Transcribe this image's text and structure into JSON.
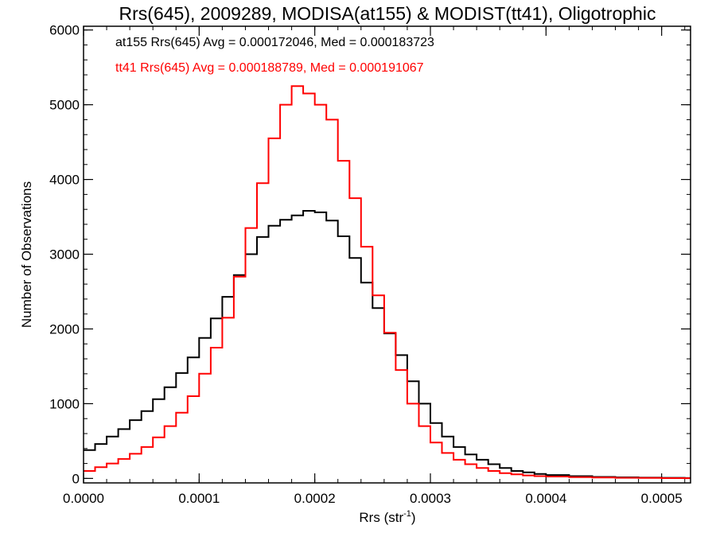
{
  "chart_data": {
    "type": "line",
    "step": true,
    "title": "Rrs(645), 2009289, MODISA(at155) & MODIST(tt41), Oligotrophic",
    "xlabel_base": "Rrs (str",
    "xlabel_sup": "-1",
    "xlabel_close": ")",
    "ylabel": "Number of Observations",
    "xlim": [
      0,
      0.000525
    ],
    "ylim": [
      -60,
      6050
    ],
    "x_ticks": [
      0,
      0.0001,
      0.0002,
      0.0003,
      0.0004,
      0.0005
    ],
    "x_tick_labels": [
      "0.0000",
      "0.0001",
      "0.0002",
      "0.0003",
      "0.0004",
      "0.0005"
    ],
    "y_ticks": [
      0,
      1000,
      2000,
      3000,
      4000,
      5000,
      6000
    ],
    "y_tick_labels": [
      "0",
      "1000",
      "2000",
      "3000",
      "4000",
      "5000",
      "6000"
    ],
    "series": [
      {
        "name": "at155",
        "color": "#000000",
        "stats_text": "at155 Rrs(645) Avg = 0.000172046, Med = 0.000183723",
        "points": [
          [
            0,
            380
          ],
          [
            1e-05,
            460
          ],
          [
            2e-05,
            560
          ],
          [
            3e-05,
            660
          ],
          [
            4e-05,
            780
          ],
          [
            5e-05,
            900
          ],
          [
            6e-05,
            1060
          ],
          [
            7e-05,
            1220
          ],
          [
            8e-05,
            1410
          ],
          [
            9e-05,
            1620
          ],
          [
            0.0001,
            1880
          ],
          [
            0.00011,
            2140
          ],
          [
            0.00012,
            2430
          ],
          [
            0.00013,
            2720
          ],
          [
            0.00014,
            3000
          ],
          [
            0.00015,
            3230
          ],
          [
            0.00016,
            3380
          ],
          [
            0.00017,
            3460
          ],
          [
            0.00018,
            3520
          ],
          [
            0.00019,
            3580
          ],
          [
            0.0002,
            3560
          ],
          [
            0.00021,
            3450
          ],
          [
            0.00022,
            3240
          ],
          [
            0.00023,
            2950
          ],
          [
            0.00024,
            2620
          ],
          [
            0.00025,
            2280
          ],
          [
            0.00026,
            1940
          ],
          [
            0.00027,
            1650
          ],
          [
            0.00028,
            1300
          ],
          [
            0.00029,
            1000
          ],
          [
            0.0003,
            740
          ],
          [
            0.00031,
            560
          ],
          [
            0.00032,
            420
          ],
          [
            0.00033,
            320
          ],
          [
            0.00034,
            250
          ],
          [
            0.00035,
            190
          ],
          [
            0.00036,
            140
          ],
          [
            0.00037,
            100
          ],
          [
            0.00038,
            80
          ],
          [
            0.00039,
            60
          ],
          [
            0.0004,
            45
          ],
          [
            0.00042,
            30
          ],
          [
            0.00044,
            20
          ],
          [
            0.00046,
            15
          ],
          [
            0.00048,
            10
          ],
          [
            0.0005,
            8
          ],
          [
            0.00052,
            5
          ]
        ]
      },
      {
        "name": "tt41",
        "color": "#ff0000",
        "stats_text": "tt41 Rrs(645) Avg = 0.000188789, Med = 0.000191067",
        "points": [
          [
            0,
            100
          ],
          [
            1e-05,
            150
          ],
          [
            2e-05,
            200
          ],
          [
            3e-05,
            260
          ],
          [
            4e-05,
            330
          ],
          [
            5e-05,
            420
          ],
          [
            6e-05,
            550
          ],
          [
            7e-05,
            700
          ],
          [
            8e-05,
            880
          ],
          [
            9e-05,
            1100
          ],
          [
            0.0001,
            1400
          ],
          [
            0.00011,
            1750
          ],
          [
            0.00012,
            2150
          ],
          [
            0.00013,
            2700
          ],
          [
            0.00014,
            3350
          ],
          [
            0.00015,
            3950
          ],
          [
            0.00016,
            4550
          ],
          [
            0.00017,
            5000
          ],
          [
            0.00018,
            5250
          ],
          [
            0.00019,
            5150
          ],
          [
            0.0002,
            5000
          ],
          [
            0.00021,
            4800
          ],
          [
            0.00022,
            4250
          ],
          [
            0.00023,
            3750
          ],
          [
            0.00024,
            3100
          ],
          [
            0.00025,
            2450
          ],
          [
            0.00026,
            1950
          ],
          [
            0.00027,
            1450
          ],
          [
            0.00028,
            1000
          ],
          [
            0.00029,
            700
          ],
          [
            0.0003,
            480
          ],
          [
            0.00031,
            340
          ],
          [
            0.00032,
            250
          ],
          [
            0.00033,
            190
          ],
          [
            0.00034,
            140
          ],
          [
            0.00035,
            100
          ],
          [
            0.00036,
            70
          ],
          [
            0.00037,
            55
          ],
          [
            0.00038,
            40
          ],
          [
            0.00039,
            30
          ],
          [
            0.0004,
            25
          ],
          [
            0.00042,
            18
          ],
          [
            0.00044,
            12
          ],
          [
            0.00046,
            8
          ],
          [
            0.00048,
            6
          ],
          [
            0.0005,
            4
          ],
          [
            0.00052,
            3
          ]
        ]
      }
    ]
  }
}
